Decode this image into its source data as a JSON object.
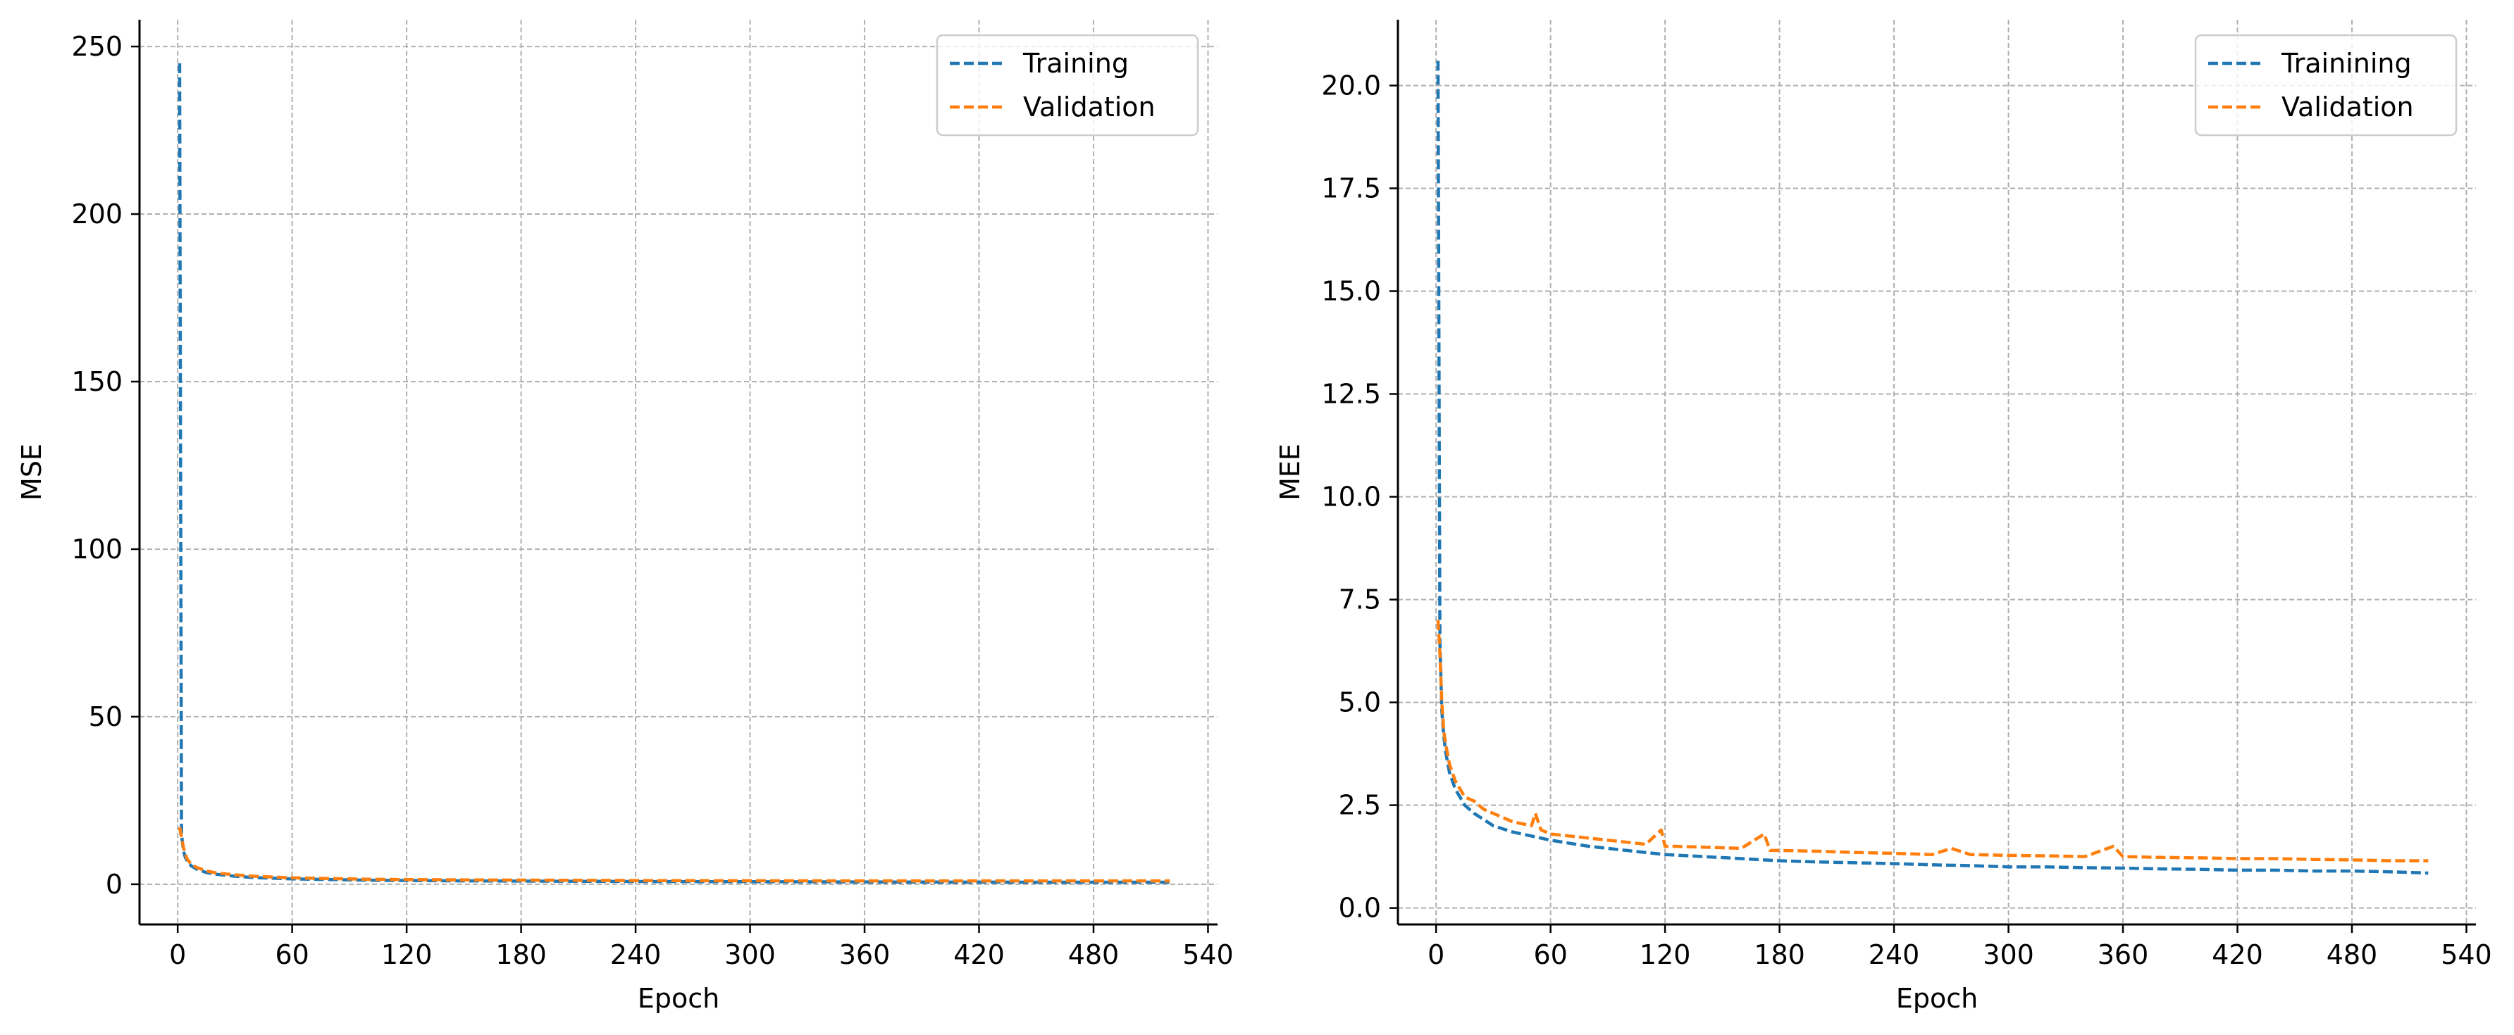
{
  "chart_data": [
    {
      "type": "line",
      "title": "",
      "xlabel": "Epoch",
      "ylabel": "MSE",
      "xlim": [
        -20,
        545
      ],
      "ylim": [
        -12,
        258
      ],
      "xticks": [
        0,
        60,
        120,
        180,
        240,
        300,
        360,
        420,
        480,
        540
      ],
      "yticks": [
        0,
        50,
        100,
        150,
        200,
        250
      ],
      "grid": true,
      "legend_position": "top-right",
      "series": [
        {
          "name": "Training",
          "color": "#1f77b4",
          "line_style": "dashed",
          "x": [
            1,
            2,
            3,
            4,
            5,
            7,
            10,
            15,
            20,
            30,
            40,
            60,
            80,
            100,
            150,
            200,
            250,
            300,
            350,
            400,
            450,
            500,
            520
          ],
          "y": [
            245,
            15,
            10,
            8,
            7,
            5.5,
            4.5,
            3.5,
            3,
            2.4,
            2,
            1.6,
            1.4,
            1.2,
            1,
            0.9,
            0.8,
            0.75,
            0.7,
            0.65,
            0.6,
            0.6,
            0.6
          ]
        },
        {
          "name": "Validation",
          "color": "#ff7f0e",
          "line_style": "dashed",
          "x": [
            1,
            2,
            3,
            4,
            5,
            7,
            10,
            15,
            20,
            30,
            40,
            60,
            80,
            100,
            150,
            200,
            250,
            300,
            350,
            400,
            450,
            500,
            520
          ],
          "y": [
            17,
            14,
            11,
            9,
            7.5,
            6,
            5,
            4,
            3.4,
            2.8,
            2.4,
            1.9,
            1.7,
            1.5,
            1.3,
            1.2,
            1.1,
            1.05,
            1,
            1,
            1,
            1,
            1
          ]
        }
      ]
    },
    {
      "type": "line",
      "title": "",
      "xlabel": "Epoch",
      "ylabel": "MEE",
      "xlim": [
        -20,
        545
      ],
      "ylim": [
        -0.4,
        21.6
      ],
      "xticks": [
        0,
        60,
        120,
        180,
        240,
        300,
        360,
        420,
        480,
        540
      ],
      "yticks": [
        0.0,
        2.5,
        5.0,
        7.5,
        10.0,
        12.5,
        15.0,
        17.5,
        20.0
      ],
      "ytick_labels": [
        "0.0",
        "2.5",
        "5.0",
        "7.5",
        "10.0",
        "12.5",
        "15.0",
        "17.5",
        "20.0"
      ],
      "grid": true,
      "legend_position": "top-right",
      "series": [
        {
          "name": "Trainining",
          "color": "#1f77b4",
          "line_style": "dashed",
          "x": [
            1,
            2,
            3,
            4,
            5,
            7,
            10,
            15,
            20,
            30,
            40,
            50,
            60,
            80,
            100,
            120,
            140,
            160,
            180,
            200,
            220,
            240,
            260,
            280,
            300,
            320,
            340,
            360,
            380,
            400,
            420,
            440,
            460,
            480,
            500,
            520
          ],
          "y": [
            20.6,
            6.5,
            4.8,
            4.2,
            3.8,
            3.3,
            2.9,
            2.5,
            2.3,
            2.0,
            1.85,
            1.75,
            1.65,
            1.5,
            1.4,
            1.3,
            1.25,
            1.2,
            1.15,
            1.12,
            1.1,
            1.08,
            1.05,
            1.03,
            1.0,
            1.0,
            0.98,
            0.97,
            0.95,
            0.94,
            0.92,
            0.92,
            0.9,
            0.9,
            0.88,
            0.85
          ]
        },
        {
          "name": "Validation",
          "color": "#ff7f0e",
          "line_style": "dashed",
          "x": [
            1,
            2,
            3,
            4,
            5,
            7,
            10,
            15,
            20,
            25,
            30,
            40,
            50,
            52,
            55,
            60,
            70,
            80,
            90,
            100,
            110,
            118,
            120,
            125,
            140,
            160,
            172,
            175,
            180,
            200,
            220,
            240,
            260,
            270,
            280,
            300,
            320,
            340,
            355,
            360,
            380,
            400,
            420,
            440,
            460,
            480,
            500,
            520
          ],
          "y": [
            7.0,
            6.2,
            5.0,
            4.3,
            4.0,
            3.5,
            3.1,
            2.7,
            2.6,
            2.4,
            2.3,
            2.1,
            2.0,
            2.3,
            1.9,
            1.8,
            1.75,
            1.7,
            1.65,
            1.6,
            1.55,
            1.9,
            1.5,
            1.5,
            1.48,
            1.45,
            1.8,
            1.4,
            1.4,
            1.38,
            1.35,
            1.33,
            1.3,
            1.45,
            1.3,
            1.28,
            1.27,
            1.25,
            1.5,
            1.25,
            1.23,
            1.22,
            1.2,
            1.2,
            1.18,
            1.17,
            1.15,
            1.15
          ]
        }
      ]
    }
  ]
}
